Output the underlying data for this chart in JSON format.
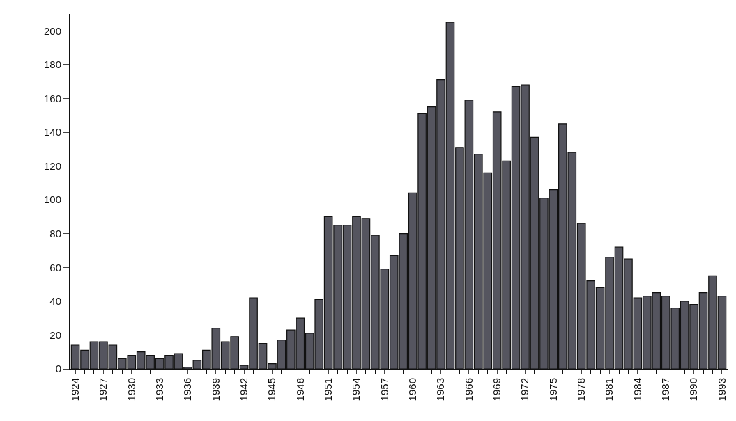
{
  "chart_data": {
    "type": "bar",
    "categories": [
      "1924",
      null,
      null,
      "1927",
      null,
      null,
      "1930",
      null,
      null,
      "1933",
      null,
      null,
      "1936",
      null,
      null,
      "1939",
      null,
      null,
      "1942",
      null,
      null,
      "1945",
      null,
      null,
      "1948",
      null,
      null,
      "1951",
      null,
      null,
      "1954",
      null,
      null,
      "1957",
      null,
      null,
      "1960",
      null,
      null,
      "1963",
      null,
      null,
      "1966",
      null,
      null,
      "1969",
      null,
      null,
      "1972",
      null,
      null,
      "1975",
      null,
      null,
      "1978",
      null,
      null,
      "1981",
      null,
      null,
      "1984",
      null,
      null,
      "1987",
      null,
      null,
      "1990",
      null,
      null,
      "1993"
    ],
    "values": [
      14,
      11,
      16,
      16,
      14,
      6,
      8,
      10,
      8,
      6,
      8,
      9,
      1,
      5,
      11,
      24,
      16,
      19,
      2,
      42,
      15,
      3,
      17,
      23,
      30,
      21,
      41,
      90,
      85,
      85,
      90,
      89,
      79,
      59,
      67,
      80,
      104,
      151,
      155,
      171,
      205,
      131,
      159,
      127,
      116,
      152,
      123,
      167,
      168,
      137,
      101,
      106,
      145,
      128,
      86,
      52,
      48,
      66,
      72,
      65,
      42,
      43,
      45,
      43,
      36,
      40,
      38,
      45,
      55,
      43
    ],
    "color": "#55555f",
    "ylim": [
      0,
      210
    ],
    "yticks": [
      0,
      20,
      40,
      60,
      80,
      100,
      120,
      140,
      160,
      180,
      200
    ],
    "grid": false
  }
}
